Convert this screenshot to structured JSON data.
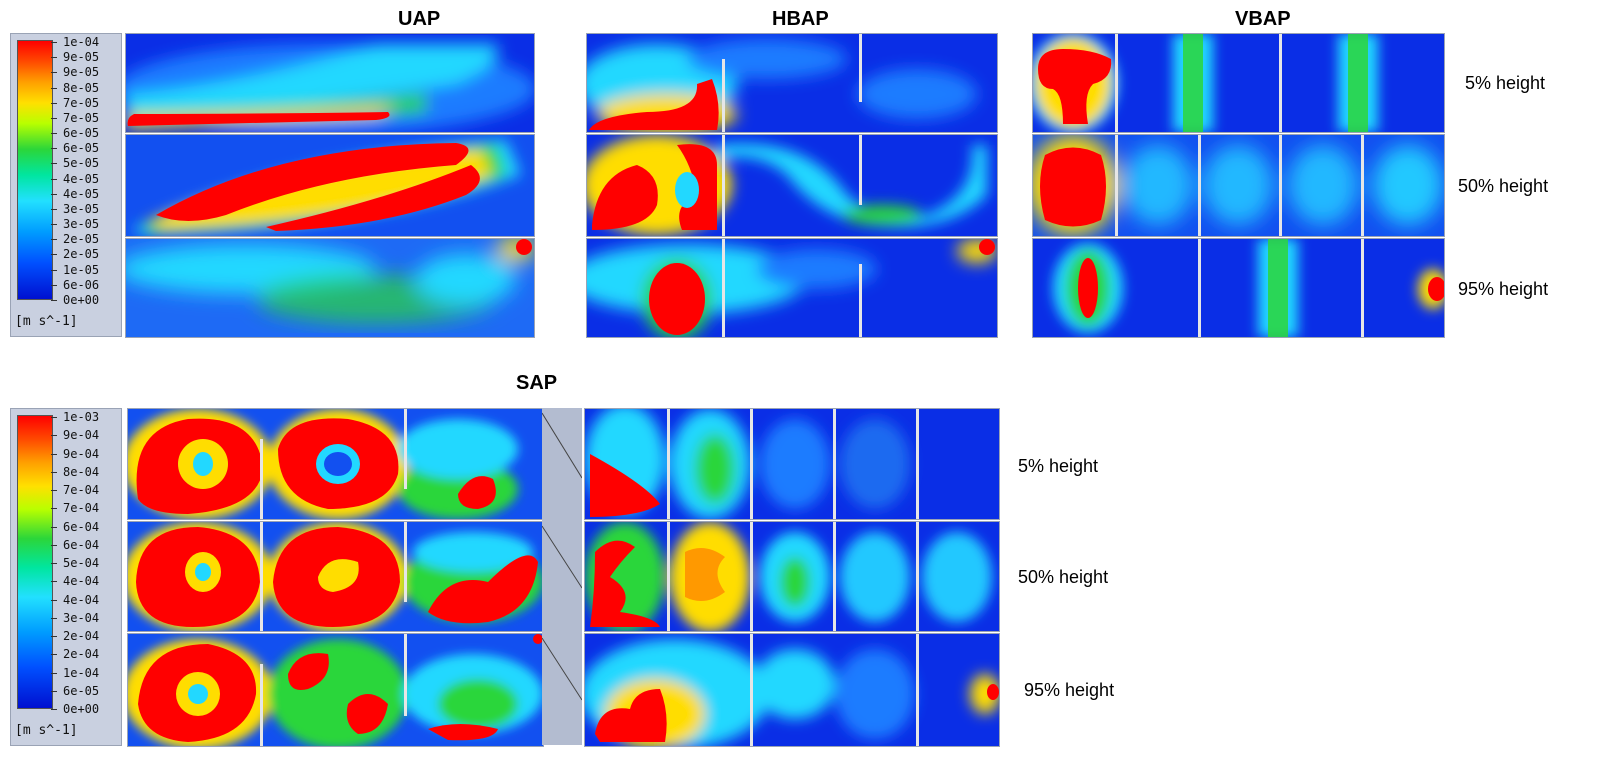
{
  "titles": {
    "uap": "UAP",
    "hbap": "HBAP",
    "vbap": "VBAP",
    "sap": "SAP"
  },
  "heights_top": [
    "5% height",
    "50% height",
    "95% height"
  ],
  "heights_bottom": [
    "5% height",
    "50% height",
    "95% height"
  ],
  "colorbar_top": {
    "labels": [
      "1e-04",
      "9e-05",
      "9e-05",
      "8e-05",
      "7e-05",
      "7e-05",
      "6e-05",
      "6e-05",
      "5e-05",
      "4e-05",
      "4e-05",
      "3e-05",
      "3e-05",
      "2e-05",
      "2e-05",
      "1e-05",
      "6e-06",
      "0e+00"
    ],
    "unit": "[m s^-1]"
  },
  "colorbar_bottom": {
    "labels": [
      "1e-03",
      "9e-04",
      "9e-04",
      "8e-04",
      "7e-04",
      "7e-04",
      "6e-04",
      "6e-04",
      "5e-04",
      "4e-04",
      "4e-04",
      "3e-04",
      "2e-04",
      "2e-04",
      "1e-04",
      "6e-05",
      "0e+00"
    ],
    "unit": "[m s^-1]"
  },
  "colors": {
    "red": "#ff0000",
    "yellow": "#ffdd00",
    "green": "#2bd63a",
    "cyan": "#22e0ff",
    "blue": "#0a2ee6"
  }
}
